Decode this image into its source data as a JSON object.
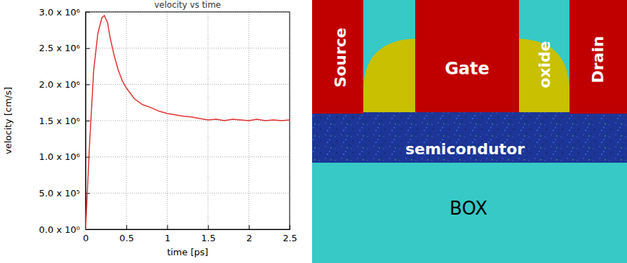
{
  "chart_data": {
    "type": "line",
    "title": "velocity vs time",
    "x_label": "time [ps]",
    "y_label": "velocity [cm/s]",
    "x": [
      0,
      0.05,
      0.1,
      0.15,
      0.2,
      0.23,
      0.27,
      0.3,
      0.35,
      0.4,
      0.45,
      0.5,
      0.6,
      0.7,
      0.8,
      0.9,
      1.0,
      1.1,
      1.2,
      1.3,
      1.4,
      1.5,
      1.6,
      1.7,
      1.8,
      1.9,
      2.0,
      2.1,
      2.2,
      2.3,
      2.4,
      2.5
    ],
    "values": [
      0,
      1200000,
      2200000,
      2700000,
      2920000,
      2950000,
      2850000,
      2650000,
      2400000,
      2200000,
      2050000,
      1950000,
      1800000,
      1720000,
      1680000,
      1630000,
      1600000,
      1580000,
      1560000,
      1550000,
      1530000,
      1510000,
      1520000,
      1500000,
      1520000,
      1510000,
      1500000,
      1520000,
      1500000,
      1510000,
      1500000,
      1510000
    ],
    "color": "#e03030",
    "xlim": [
      0,
      2.5
    ],
    "xticks": [
      0,
      0.5,
      1,
      1.5,
      2,
      2.5
    ],
    "ylim": [
      0,
      3000000
    ],
    "yticks": [
      {
        "value": 0,
        "label": "0.0 x 10⁰"
      },
      {
        "value": 500000,
        "label": "5.0 x 10⁵"
      },
      {
        "value": 1000000,
        "label": "1.0 x 10⁶"
      },
      {
        "value": 1500000,
        "label": "1.5 x 10⁶"
      },
      {
        "value": 2000000,
        "label": "2.0 x 10⁶"
      },
      {
        "value": 2500000,
        "label": "2.5 x 10⁶"
      },
      {
        "value": 3000000,
        "label": "3.0 x 10⁶"
      }
    ],
    "grid": true
  },
  "diagram": {
    "labels": {
      "source": "Source",
      "gate": "Gate",
      "oxide": "oxide",
      "drain": "Drain",
      "semiconductor": "semicondutor",
      "box": "BOX"
    }
  }
}
